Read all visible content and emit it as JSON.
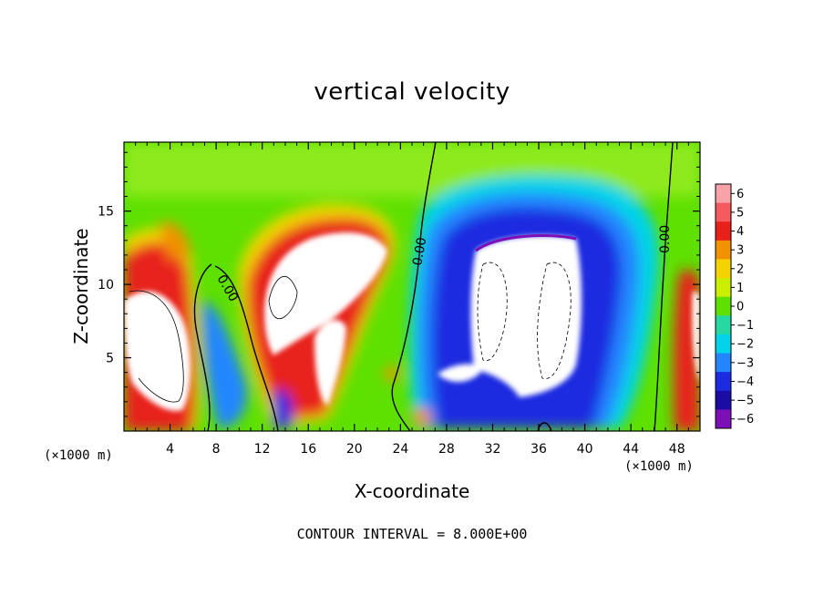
{
  "chart_data": {
    "type": "heatmap",
    "title": "vertical velocity",
    "xlabel": "X-coordinate",
    "ylabel": "Z-coordinate",
    "x_unit": "(×1000 m)",
    "x_ticks": [
      4,
      8,
      12,
      16,
      20,
      24,
      28,
      32,
      36,
      40,
      44,
      48
    ],
    "y_ticks": [
      5,
      10,
      15
    ],
    "xlim": [
      0,
      50
    ],
    "ylim": [
      0,
      19.7
    ],
    "colorbar": {
      "ticks": [
        6,
        5,
        4,
        3,
        2,
        1,
        0,
        -1,
        -2,
        -3,
        -4,
        -5,
        -6
      ],
      "tick_labels": [
        "6",
        "5",
        "4",
        "3",
        "2",
        "1",
        "0",
        "−1",
        "−2",
        "−3",
        "−4",
        "−5",
        "−6"
      ],
      "colors": [
        "#f7a3a8",
        "#f45a5e",
        "#e8201a",
        "#f29200",
        "#f4d400",
        "#ccef00",
        "#5ee000",
        "#26d8a2",
        "#00d4e8",
        "#2386ff",
        "#1a2be0",
        "#1b0ca6",
        "#7c0fb6"
      ]
    },
    "contour_labels": [
      "0.00",
      "0.00",
      "0.00"
    ],
    "footer": "CONTOUR INTERVAL = 8.000E+00"
  }
}
